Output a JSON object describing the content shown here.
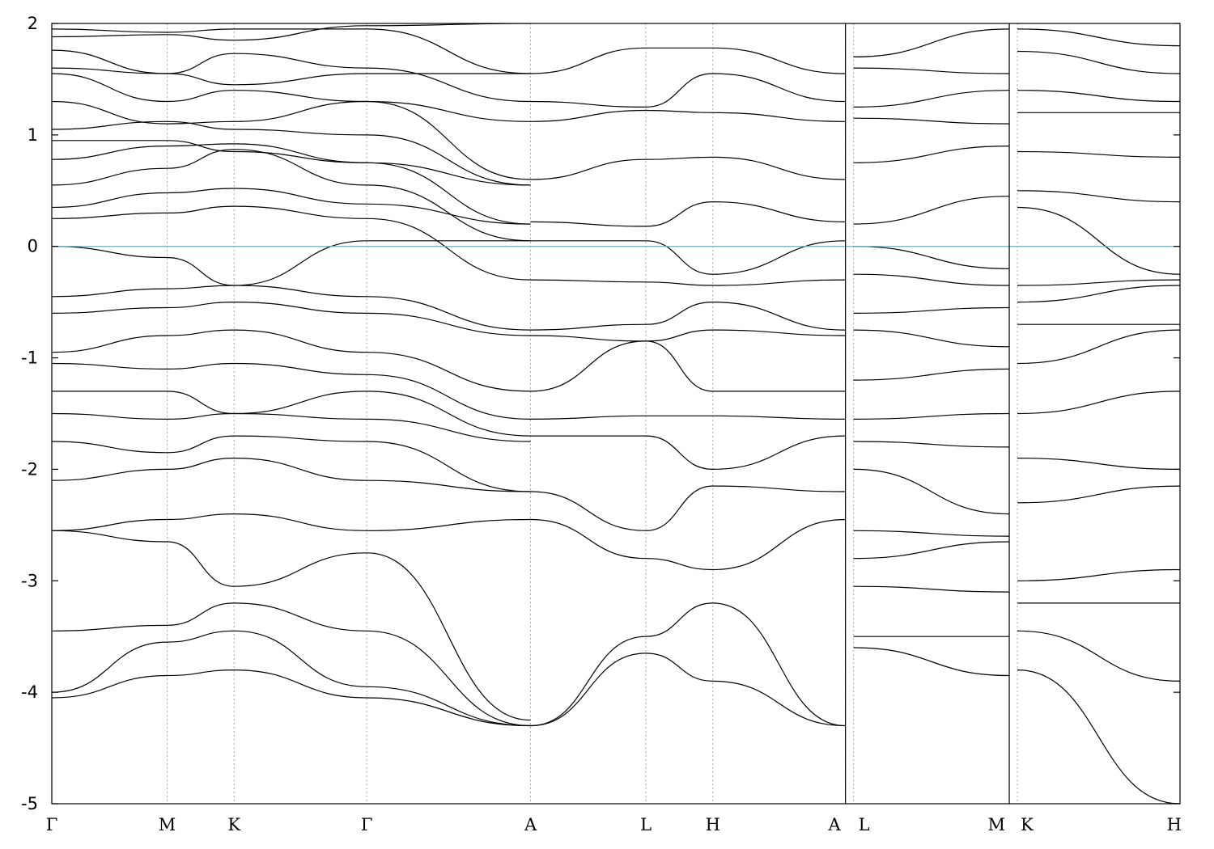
{
  "chart_data": {
    "type": "line",
    "title": "",
    "xlabel": "",
    "ylabel": "",
    "ylim": [
      -5,
      2
    ],
    "yticks": [
      -5,
      -4,
      -3,
      -2,
      -1,
      0,
      1,
      2
    ],
    "ytick_labels": [
      "-5",
      "-4",
      "-3",
      "-2",
      "-1",
      "0",
      "1",
      "2"
    ],
    "kpath": [
      {
        "label": "Γ",
        "x": 0.0
      },
      {
        "label": "M",
        "x": 1.0
      },
      {
        "label": "K",
        "x": 1.58
      },
      {
        "label": "Γ",
        "x": 2.73
      },
      {
        "label": "A",
        "x": 4.15
      },
      {
        "label": "L",
        "x": 5.15
      },
      {
        "label": "H",
        "x": 5.73
      },
      {
        "label": "A",
        "x": 6.88
      },
      {
        "label": "L",
        "x": 6.95
      },
      {
        "label": "M",
        "x": 8.3
      },
      {
        "label": "K",
        "x": 8.37
      },
      {
        "label": "H",
        "x": 9.78
      }
    ],
    "path_breaks": [
      6.88,
      8.3
    ],
    "xlim": [
      0,
      9.78
    ],
    "fermi_level": 0,
    "fermi_color": "#5fb0c8",
    "grid": "vertical dotted at k-points",
    "legend": "none",
    "series": [
      {
        "x": [
          0,
          1,
          1.58,
          2.73,
          4.15
        ],
        "values": [
          1.95,
          1.92,
          1.95,
          1.95,
          1.55
        ]
      },
      {
        "x": [
          0,
          1,
          1.58,
          2.73,
          4.15
        ],
        "values": [
          1.88,
          1.9,
          1.85,
          1.98,
          2.0
        ]
      },
      {
        "x": [
          0,
          1,
          1.58,
          2.73,
          4.15
        ],
        "values": [
          1.76,
          1.55,
          1.73,
          1.6,
          1.3
        ]
      },
      {
        "x": [
          0,
          1,
          1.58,
          2.73,
          4.15
        ],
        "values": [
          1.6,
          1.55,
          1.45,
          1.55,
          1.55
        ]
      },
      {
        "x": [
          0,
          1,
          1.58,
          2.73,
          4.15
        ],
        "values": [
          1.55,
          1.3,
          1.4,
          1.3,
          1.12
        ]
      },
      {
        "x": [
          0,
          1,
          1.58,
          2.73,
          4.15
        ],
        "values": [
          1.3,
          1.1,
          1.12,
          1.3,
          0.6
        ]
      },
      {
        "x": [
          0,
          1,
          1.58,
          2.73,
          4.15
        ],
        "values": [
          1.05,
          1.12,
          1.05,
          1.0,
          0.55
        ]
      },
      {
        "x": [
          0,
          1,
          1.58,
          2.73,
          4.15
        ],
        "values": [
          0.95,
          0.95,
          0.85,
          0.75,
          0.55
        ]
      },
      {
        "x": [
          0,
          1,
          1.58,
          2.73,
          4.15
        ],
        "values": [
          0.78,
          0.9,
          0.92,
          0.75,
          0.2
        ]
      },
      {
        "x": [
          0,
          1,
          1.58,
          2.73,
          4.15
        ],
        "values": [
          0.55,
          0.7,
          0.87,
          0.55,
          0.05
        ]
      },
      {
        "x": [
          0,
          1,
          1.58,
          2.73,
          4.15
        ],
        "values": [
          0.35,
          0.48,
          0.52,
          0.38,
          0.2
        ]
      },
      {
        "x": [
          0,
          1,
          1.58,
          2.73,
          4.15
        ],
        "values": [
          0.25,
          0.3,
          0.36,
          0.25,
          -0.3
        ]
      },
      {
        "x": [
          0,
          1,
          1.58,
          2.73,
          4.15
        ],
        "values": [
          0.0,
          -0.1,
          -0.35,
          0.05,
          0.05
        ]
      },
      {
        "x": [
          0,
          1,
          1.58,
          2.73,
          4.15
        ],
        "values": [
          -0.45,
          -0.38,
          -0.35,
          -0.45,
          -0.75
        ]
      },
      {
        "x": [
          0,
          1,
          1.58,
          2.73,
          4.15
        ],
        "values": [
          -0.6,
          -0.55,
          -0.5,
          -0.6,
          -0.8
        ]
      },
      {
        "x": [
          0,
          1,
          1.58,
          2.73,
          4.15
        ],
        "values": [
          -0.95,
          -0.8,
          -0.75,
          -0.95,
          -1.3
        ]
      },
      {
        "x": [
          0,
          1,
          1.58,
          2.73,
          4.15
        ],
        "values": [
          -1.05,
          -1.1,
          -1.05,
          -1.15,
          -1.55
        ]
      },
      {
        "x": [
          0,
          1,
          1.58,
          2.73,
          4.15
        ],
        "values": [
          -1.3,
          -1.3,
          -1.5,
          -1.3,
          -1.7
        ]
      },
      {
        "x": [
          0,
          1,
          1.58,
          2.73,
          4.15
        ],
        "values": [
          -1.5,
          -1.55,
          -1.5,
          -1.55,
          -1.75
        ]
      },
      {
        "x": [
          0,
          1,
          1.58,
          2.73,
          4.15
        ],
        "values": [
          -1.75,
          -1.85,
          -1.7,
          -1.75,
          -2.2
        ]
      },
      {
        "x": [
          0,
          1,
          1.58,
          2.73,
          4.15
        ],
        "values": [
          -2.1,
          -2.0,
          -1.9,
          -2.1,
          -2.2
        ]
      },
      {
        "x": [
          0,
          1,
          1.58,
          2.73,
          4.15
        ],
        "values": [
          -2.55,
          -2.45,
          -2.4,
          -2.55,
          -2.45
        ]
      },
      {
        "x": [
          0,
          1,
          1.58,
          2.73,
          4.15
        ],
        "values": [
          -2.55,
          -2.65,
          -3.05,
          -2.75,
          -4.25
        ]
      },
      {
        "x": [
          0,
          1,
          1.58,
          2.73,
          4.15
        ],
        "values": [
          -3.45,
          -3.4,
          -3.2,
          -3.45,
          -4.3
        ]
      },
      {
        "x": [
          0,
          1,
          1.58,
          2.73,
          4.15
        ],
        "values": [
          -4.0,
          -3.55,
          -3.45,
          -3.95,
          -4.3
        ]
      },
      {
        "x": [
          0,
          1,
          1.58,
          2.73,
          4.15
        ],
        "values": [
          -4.05,
          -3.85,
          -3.8,
          -4.05,
          -4.3
        ]
      },
      {
        "x": [
          4.15,
          5.15,
          5.73,
          6.88
        ],
        "values": [
          1.55,
          1.78,
          1.78,
          1.55
        ]
      },
      {
        "x": [
          4.15,
          5.15,
          5.73,
          6.88
        ],
        "values": [
          1.3,
          1.25,
          1.55,
          1.3
        ]
      },
      {
        "x": [
          4.15,
          5.15,
          5.73,
          6.88
        ],
        "values": [
          1.12,
          1.22,
          1.2,
          1.12
        ]
      },
      {
        "x": [
          4.15,
          5.15,
          5.73,
          6.88
        ],
        "values": [
          0.6,
          0.78,
          0.8,
          0.6
        ]
      },
      {
        "x": [
          4.15,
          5.15,
          5.73,
          6.88
        ],
        "values": [
          0.22,
          0.18,
          0.4,
          0.22
        ]
      },
      {
        "x": [
          4.15,
          5.15,
          5.73,
          6.88
        ],
        "values": [
          0.05,
          0.05,
          -0.25,
          0.05
        ]
      },
      {
        "x": [
          4.15,
          5.15,
          5.73,
          6.88
        ],
        "values": [
          -0.3,
          -0.32,
          -0.35,
          -0.3
        ]
      },
      {
        "x": [
          4.15,
          5.15,
          5.73,
          6.88
        ],
        "values": [
          -0.75,
          -0.7,
          -0.5,
          -0.75
        ]
      },
      {
        "x": [
          4.15,
          5.15,
          5.73,
          6.88
        ],
        "values": [
          -0.8,
          -0.85,
          -0.75,
          -0.8
        ]
      },
      {
        "x": [
          4.15,
          5.15,
          5.73,
          6.88
        ],
        "values": [
          -1.3,
          -0.85,
          -1.3,
          -1.3
        ]
      },
      {
        "x": [
          4.15,
          5.15,
          5.73,
          6.88
        ],
        "values": [
          -1.55,
          -1.52,
          -1.52,
          -1.55
        ]
      },
      {
        "x": [
          4.15,
          5.15,
          5.73,
          6.88
        ],
        "values": [
          -1.7,
          -1.7,
          -2.0,
          -1.7
        ]
      },
      {
        "x": [
          4.15,
          5.15,
          5.73,
          6.88
        ],
        "values": [
          -2.2,
          -2.55,
          -2.15,
          -2.2
        ]
      },
      {
        "x": [
          4.15,
          5.15,
          5.73,
          6.88
        ],
        "values": [
          -2.45,
          -2.8,
          -2.9,
          -2.45
        ]
      },
      {
        "x": [
          4.15,
          5.15,
          5.73,
          6.88
        ],
        "values": [
          -4.3,
          -3.5,
          -3.2,
          -4.3
        ]
      },
      {
        "x": [
          4.15,
          5.15,
          5.73,
          6.88
        ],
        "values": [
          -4.3,
          -3.65,
          -3.9,
          -4.3
        ]
      },
      {
        "x": [
          6.95,
          8.3
        ],
        "values": [
          1.7,
          1.95
        ]
      },
      {
        "x": [
          6.95,
          8.3
        ],
        "values": [
          1.6,
          1.55
        ]
      },
      {
        "x": [
          6.95,
          8.3
        ],
        "values": [
          1.25,
          1.4
        ]
      },
      {
        "x": [
          6.95,
          8.3
        ],
        "values": [
          1.15,
          1.1
        ]
      },
      {
        "x": [
          6.95,
          8.3
        ],
        "values": [
          0.75,
          0.9
        ]
      },
      {
        "x": [
          6.95,
          8.3
        ],
        "values": [
          0.2,
          0.45
        ]
      },
      {
        "x": [
          6.95,
          8.3
        ],
        "values": [
          0.0,
          -0.2
        ]
      },
      {
        "x": [
          6.95,
          8.3
        ],
        "values": [
          -0.25,
          -0.35
        ]
      },
      {
        "x": [
          6.95,
          8.3
        ],
        "values": [
          -0.6,
          -0.55
        ]
      },
      {
        "x": [
          6.95,
          8.3
        ],
        "values": [
          -0.75,
          -0.9
        ]
      },
      {
        "x": [
          6.95,
          8.3
        ],
        "values": [
          -1.2,
          -1.1
        ]
      },
      {
        "x": [
          6.95,
          8.3
        ],
        "values": [
          -1.55,
          -1.5
        ]
      },
      {
        "x": [
          6.95,
          8.3
        ],
        "values": [
          -1.75,
          -1.8
        ]
      },
      {
        "x": [
          6.95,
          8.3
        ],
        "values": [
          -2.0,
          -2.4
        ]
      },
      {
        "x": [
          6.95,
          8.3
        ],
        "values": [
          -2.55,
          -2.6
        ]
      },
      {
        "x": [
          6.95,
          8.3
        ],
        "values": [
          -2.8,
          -2.65
        ]
      },
      {
        "x": [
          6.95,
          8.3
        ],
        "values": [
          -3.05,
          -3.1
        ]
      },
      {
        "x": [
          6.95,
          8.3
        ],
        "values": [
          -3.5,
          -3.5
        ]
      },
      {
        "x": [
          6.95,
          8.3
        ],
        "values": [
          -3.6,
          -3.85
        ]
      },
      {
        "x": [
          8.37,
          9.78
        ],
        "values": [
          1.95,
          1.8
        ]
      },
      {
        "x": [
          8.37,
          9.78
        ],
        "values": [
          1.75,
          1.55
        ]
      },
      {
        "x": [
          8.37,
          9.78
        ],
        "values": [
          1.4,
          1.3
        ]
      },
      {
        "x": [
          8.37,
          9.78
        ],
        "values": [
          1.2,
          1.2
        ]
      },
      {
        "x": [
          8.37,
          9.78
        ],
        "values": [
          0.85,
          0.8
        ]
      },
      {
        "x": [
          8.37,
          9.78
        ],
        "values": [
          0.5,
          0.4
        ]
      },
      {
        "x": [
          8.37,
          9.78
        ],
        "values": [
          0.35,
          -0.25
        ]
      },
      {
        "x": [
          8.37,
          9.78
        ],
        "values": [
          -0.35,
          -0.3
        ]
      },
      {
        "x": [
          8.37,
          9.78
        ],
        "values": [
          -0.5,
          -0.35
        ]
      },
      {
        "x": [
          8.37,
          9.78
        ],
        "values": [
          -0.7,
          -0.7
        ]
      },
      {
        "x": [
          8.37,
          9.78
        ],
        "values": [
          -1.05,
          -0.75
        ]
      },
      {
        "x": [
          8.37,
          9.78
        ],
        "values": [
          -1.5,
          -1.3
        ]
      },
      {
        "x": [
          8.37,
          9.78
        ],
        "values": [
          -1.9,
          -2.0
        ]
      },
      {
        "x": [
          8.37,
          9.78
        ],
        "values": [
          -2.3,
          -2.15
        ]
      },
      {
        "x": [
          8.37,
          9.78
        ],
        "values": [
          -3.0,
          -2.9
        ]
      },
      {
        "x": [
          8.37,
          9.78
        ],
        "values": [
          -3.2,
          -3.2
        ]
      },
      {
        "x": [
          8.37,
          9.78
        ],
        "values": [
          -3.45,
          -3.9
        ]
      },
      {
        "x": [
          8.37,
          9.78
        ],
        "values": [
          -3.8,
          -5.0
        ]
      }
    ]
  }
}
